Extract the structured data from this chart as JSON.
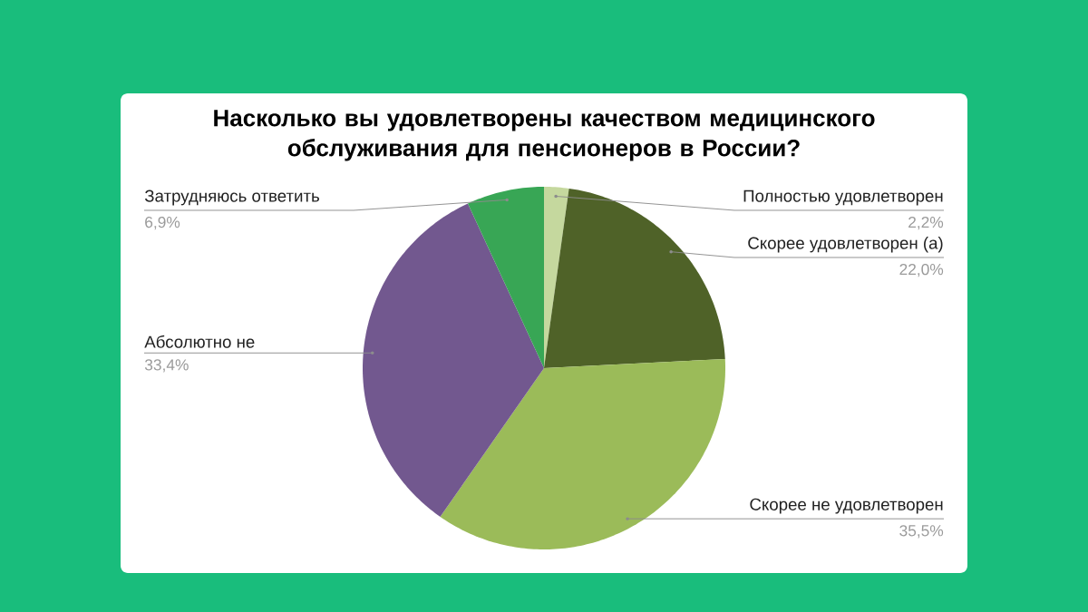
{
  "chart_data": {
    "type": "pie",
    "title": "Насколько вы удовлетворены качеством медицинского обслуживания для пенсионеров в России?",
    "categories": [
      "Полностью удовлетворен",
      "Скорее удовлетворен (а)",
      "Скорее не удовлетворен",
      "Абсолютно не",
      "Затрудняюсь ответить"
    ],
    "values": [
      2.2,
      22.0,
      35.5,
      33.4,
      6.9
    ],
    "colors": [
      "#c5d89e",
      "#4f6228",
      "#9bbb59",
      "#72588f",
      "#38a655"
    ],
    "value_labels": [
      "2,2%",
      "22,0%",
      "35,5%",
      "33,4%",
      "6,9%"
    ]
  }
}
